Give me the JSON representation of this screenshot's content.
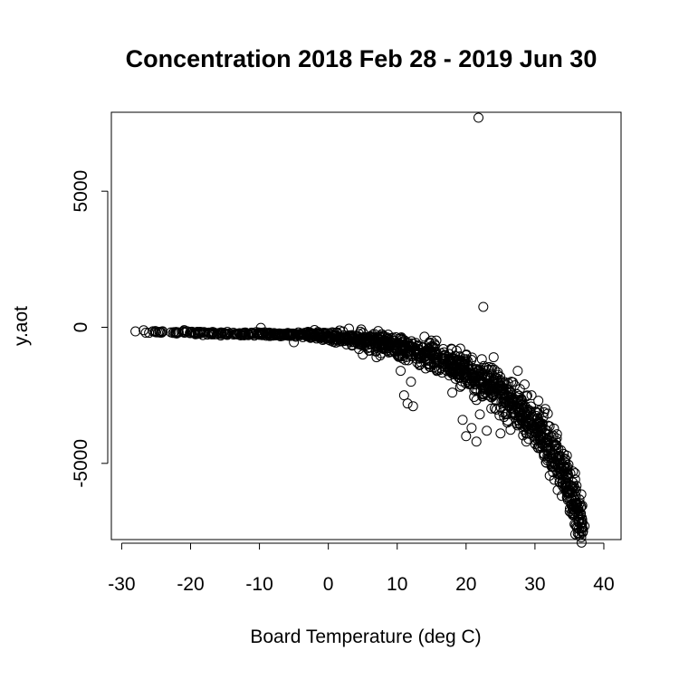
{
  "chart_data": {
    "type": "scatter",
    "title": "Concentration  2018 Feb 28 - 2019 Jun 30",
    "xlabel": "Board Temperature (deg C)",
    "ylabel": "y.aot",
    "xlim": [
      -31.5,
      42.5
    ],
    "ylim": [
      -7800,
      7900
    ],
    "x_ticks": [
      -30,
      -20,
      -10,
      0,
      10,
      20,
      30,
      40
    ],
    "x_tick_labels": [
      "-30",
      "-20",
      "-10",
      "0",
      "10",
      "20",
      "30",
      "40"
    ],
    "y_ticks": [
      -5000,
      0,
      5000
    ],
    "y_tick_labels": [
      "-5000",
      "0",
      "5000"
    ],
    "marker": "open-circle",
    "marker_color": "#000000",
    "trend": {
      "description": "points follow y ≈ -150 at -28 °C, declining to about -7300 at 37 °C",
      "x": [
        -28,
        -20,
        -10,
        0,
        10,
        15,
        20,
        25,
        30,
        33,
        35,
        37
      ],
      "y": [
        -150,
        -200,
        -250,
        -300,
        -650,
        -1000,
        -1600,
        -2400,
        -3600,
        -4800,
        -5900,
        -7300
      ]
    },
    "points": [
      {
        "x": 21.8,
        "y": 7700
      },
      {
        "x": 22.5,
        "y": 750
      },
      {
        "x": -28.0,
        "y": -150
      },
      {
        "x": -26.5,
        "y": -200
      },
      {
        "x": -24.5,
        "y": -180
      },
      {
        "x": -22.0,
        "y": -220
      },
      {
        "x": -20.0,
        "y": -200
      },
      {
        "x": -17.0,
        "y": -250
      },
      {
        "x": -15.0,
        "y": -230
      },
      {
        "x": -12.0,
        "y": -260
      },
      {
        "x": -9.8,
        "y": -20
      },
      {
        "x": -5.0,
        "y": -550
      },
      {
        "x": -2.0,
        "y": -100
      },
      {
        "x": 3.0,
        "y": -50
      },
      {
        "x": 5.0,
        "y": -1000
      },
      {
        "x": 7.0,
        "y": -1100
      },
      {
        "x": 10.5,
        "y": -1600
      },
      {
        "x": 11.0,
        "y": -2500
      },
      {
        "x": 11.5,
        "y": -2800
      },
      {
        "x": 12.0,
        "y": -2000
      },
      {
        "x": 12.3,
        "y": -2900
      },
      {
        "x": 18.0,
        "y": -2400
      },
      {
        "x": 19.5,
        "y": -3400
      },
      {
        "x": 20.0,
        "y": -4000
      },
      {
        "x": 20.8,
        "y": -3700
      },
      {
        "x": 21.5,
        "y": -4200
      },
      {
        "x": 22.0,
        "y": -3200
      },
      {
        "x": 23.0,
        "y": -3800
      },
      {
        "x": 24.0,
        "y": -1100
      },
      {
        "x": 25.0,
        "y": -3900
      },
      {
        "x": 26.0,
        "y": -3500
      },
      {
        "x": 27.5,
        "y": -1600
      },
      {
        "x": 28.5,
        "y": -2100
      },
      {
        "x": 29.5,
        "y": -2500
      },
      {
        "x": 30.5,
        "y": -2700
      },
      {
        "x": 31.5,
        "y": -3000
      },
      {
        "x": 33.0,
        "y": -5000
      },
      {
        "x": 34.0,
        "y": -5600
      },
      {
        "x": 35.0,
        "y": -6100
      },
      {
        "x": 35.5,
        "y": -6900
      },
      {
        "x": 36.0,
        "y": -6600
      },
      {
        "x": 36.8,
        "y": -7000
      },
      {
        "x": 37.2,
        "y": -7300
      }
    ]
  }
}
